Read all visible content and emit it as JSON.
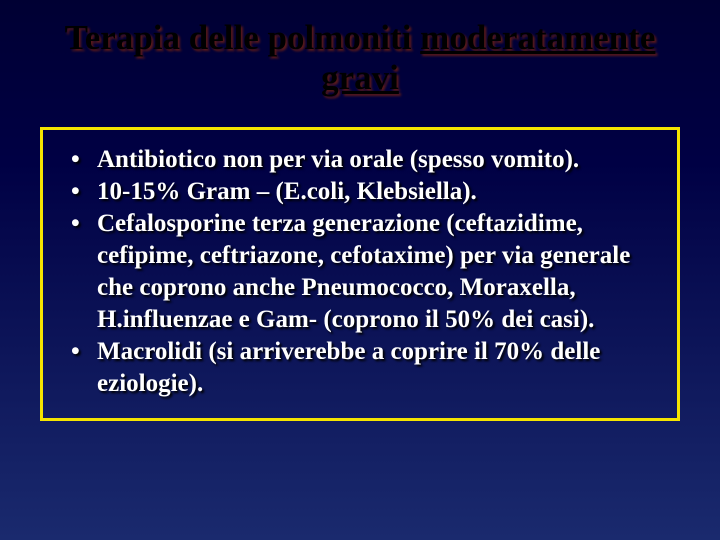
{
  "slide": {
    "title_prefix": "Terapia delle polmoniti ",
    "title_underlined": "moderatamente gravi",
    "title_fontsize": 35,
    "title_color": "#000000",
    "title_shadow_color": "#5a1a1a",
    "bullets": [
      "Antibiotico non per via orale (spesso vomito).",
      "10-15% Gram – (E.coli, Klebsiella).",
      "Cefalosporine terza generazione (ceftazidime, cefipime, ceftriazone, cefotaxime) per via generale che coprono anche Pneumococco, Moraxella, H.influenzae e Gam- (coprono il 50% dei casi).",
      "Macrolidi (si arriverebbe a coprire il 70% delle eziologie)."
    ],
    "bullet_fontsize": 25,
    "bullet_color": "#ffffff",
    "bullet_shadow_color": "#000000",
    "box_border_color": "#f5e400",
    "box_border_width": 3,
    "background_gradient_top": "#000033",
    "background_gradient_bottom": "#1a2a6e"
  }
}
